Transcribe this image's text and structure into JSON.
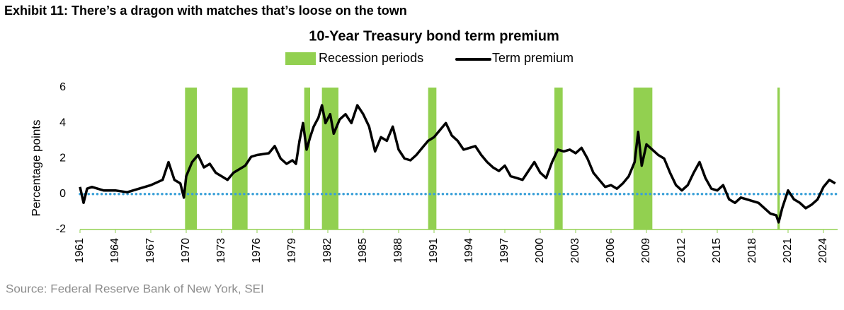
{
  "exhibit_title": "Exhibit 11: There’s a dragon with matches that’s loose on the town",
  "source": "Source: Federal Reserve Bank of New York, SEI",
  "chart_data": {
    "type": "line",
    "title": "10-Year Treasury bond term premium",
    "y_label": "Percentage points",
    "ylim": [
      -2,
      6
    ],
    "yticks": [
      -2,
      0,
      2,
      4,
      6
    ],
    "xlim": [
      1961,
      2025.2
    ],
    "xticks": [
      1961,
      1964,
      1967,
      1970,
      1973,
      1976,
      1979,
      1982,
      1985,
      1988,
      1991,
      1994,
      1997,
      2000,
      2003,
      2006,
      2009,
      2012,
      2015,
      2018,
      2021,
      2024
    ],
    "reference_line": {
      "value": 0,
      "color": "#3aa0d8"
    },
    "recessions": {
      "name": "Recession periods",
      "color": "#92d050",
      "periods": [
        [
          1969.9,
          1970.9
        ],
        [
          1973.9,
          1975.2
        ],
        [
          1980.0,
          1980.5
        ],
        [
          1981.5,
          1982.9
        ],
        [
          1990.5,
          1991.2
        ],
        [
          2001.2,
          2001.9
        ],
        [
          2007.9,
          2009.5
        ],
        [
          2020.1,
          2020.3
        ]
      ]
    },
    "x": [
      1961.0,
      1961.3,
      1961.6,
      1962,
      1963,
      1964,
      1965,
      1966,
      1967,
      1968,
      1968.5,
      1969,
      1969.5,
      1969.8,
      1970,
      1970.5,
      1971,
      1971.5,
      1972,
      1972.5,
      1973,
      1973.5,
      1974,
      1974.5,
      1975,
      1975.5,
      1976,
      1977,
      1977.5,
      1978,
      1978.5,
      1979,
      1979.3,
      1979.6,
      1979.9,
      1980.2,
      1980.5,
      1980.8,
      1981.2,
      1981.5,
      1981.8,
      1982.2,
      1982.5,
      1983,
      1983.5,
      1984,
      1984.5,
      1985,
      1985.5,
      1986,
      1986.5,
      1987,
      1987.5,
      1988,
      1988.5,
      1989,
      1989.5,
      1990,
      1990.5,
      1991,
      1991.5,
      1992,
      1992.5,
      1993,
      1993.5,
      1994,
      1994.5,
      1995,
      1995.5,
      1996,
      1996.5,
      1997,
      1997.5,
      1998,
      1998.5,
      1999,
      1999.5,
      2000,
      2000.5,
      2001,
      2001.5,
      2002,
      2002.5,
      2003,
      2003.5,
      2004,
      2004.5,
      2005,
      2005.5,
      2006,
      2006.5,
      2007,
      2007.5,
      2008,
      2008.3,
      2008.6,
      2009,
      2009.5,
      2010,
      2010.5,
      2011,
      2011.5,
      2012,
      2012.5,
      2013,
      2013.5,
      2014,
      2014.5,
      2015,
      2015.5,
      2016,
      2016.5,
      2017,
      2017.5,
      2018,
      2018.5,
      2019,
      2019.5,
      2020,
      2020.2,
      2020.5,
      2021,
      2021.5,
      2022,
      2022.5,
      2023,
      2023.5,
      2024,
      2024.5,
      2025
    ],
    "series": [
      {
        "name": "Term premium",
        "color": "#000000",
        "values": [
          0.4,
          -0.5,
          0.3,
          0.4,
          0.2,
          0.2,
          0.1,
          0.3,
          0.5,
          0.8,
          1.8,
          0.8,
          0.6,
          -0.2,
          1.0,
          1.8,
          2.2,
          1.5,
          1.7,
          1.2,
          1.0,
          0.8,
          1.2,
          1.4,
          1.6,
          2.1,
          2.2,
          2.3,
          2.7,
          2.0,
          1.7,
          1.9,
          1.7,
          3.0,
          4.0,
          2.5,
          3.2,
          3.8,
          4.3,
          5.0,
          4.0,
          4.5,
          3.4,
          4.2,
          4.5,
          4.0,
          5.0,
          4.5,
          3.8,
          2.4,
          3.2,
          3.0,
          3.8,
          2.5,
          2.0,
          1.9,
          2.2,
          2.6,
          3.0,
          3.2,
          3.6,
          4.0,
          3.3,
          3.0,
          2.5,
          2.6,
          2.7,
          2.2,
          1.8,
          1.5,
          1.3,
          1.6,
          1.0,
          0.9,
          0.8,
          1.3,
          1.8,
          1.2,
          0.9,
          1.8,
          2.5,
          2.4,
          2.5,
          2.3,
          2.6,
          2.0,
          1.2,
          0.8,
          0.4,
          0.5,
          0.3,
          0.6,
          1.0,
          1.8,
          3.5,
          1.6,
          2.8,
          2.5,
          2.2,
          2.0,
          1.2,
          0.5,
          0.2,
          0.5,
          1.2,
          1.8,
          0.9,
          0.3,
          0.2,
          0.5,
          -0.3,
          -0.5,
          -0.2,
          -0.3,
          -0.4,
          -0.5,
          -0.8,
          -1.1,
          -1.2,
          -1.6,
          -0.8,
          0.2,
          -0.3,
          -0.5,
          -0.8,
          -0.6,
          -0.3,
          0.4,
          0.8,
          0.6
        ]
      }
    ]
  }
}
